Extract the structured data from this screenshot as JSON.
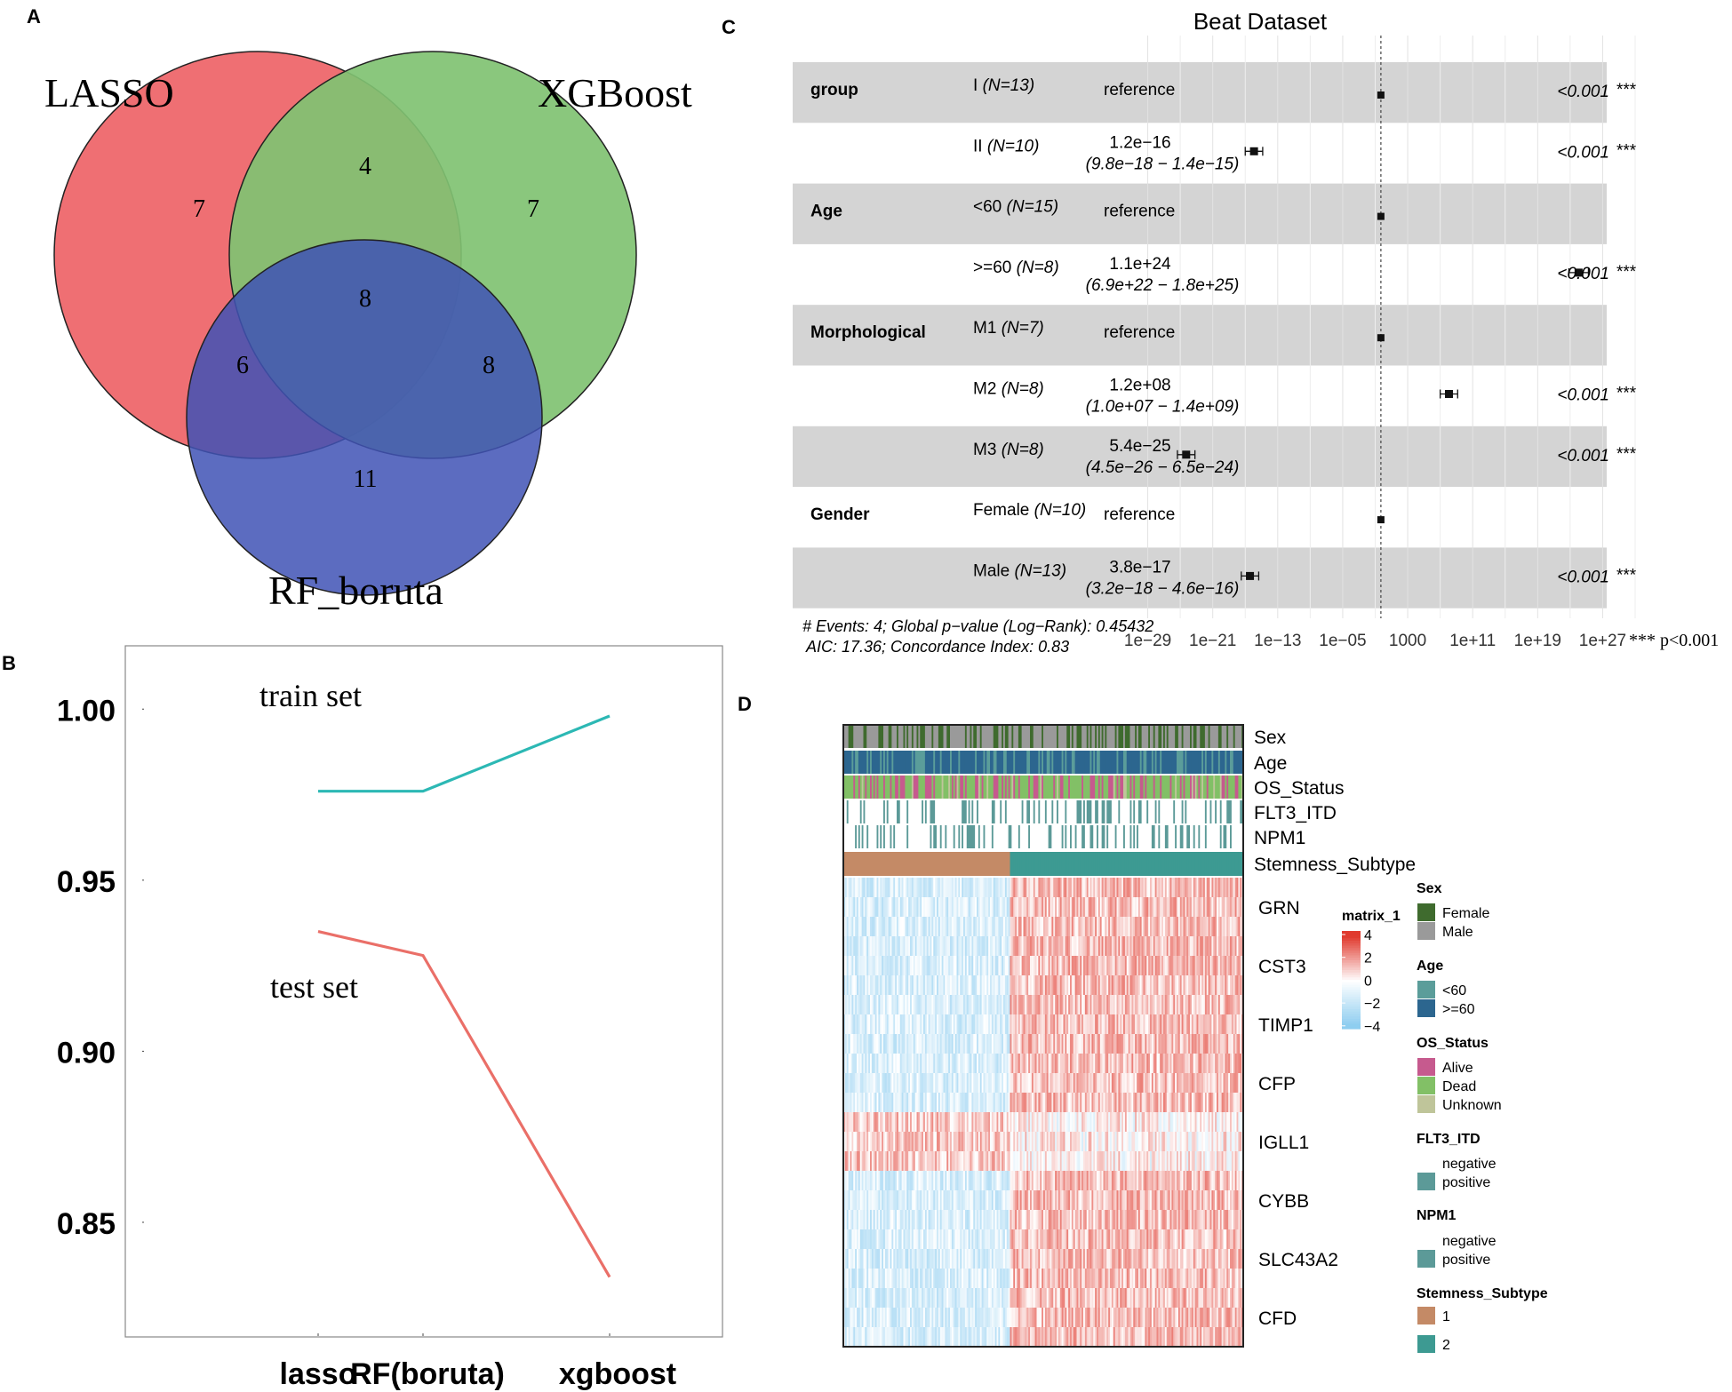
{
  "panels": {
    "A": {
      "letter": "A"
    },
    "B": {
      "letter": "B"
    },
    "C": {
      "letter": "C"
    },
    "D": {
      "letter": "D"
    }
  },
  "chart_data": [
    {
      "panel": "A",
      "type": "venn",
      "sets": [
        "LASSO",
        "XGBoost",
        "RF_boruta"
      ],
      "regions": [
        {
          "key": "lasso_only",
          "label": "LASSO only",
          "value": "7"
        },
        {
          "key": "lasso_xgb",
          "label": "LASSO ∩ XGBoost",
          "value": "4"
        },
        {
          "key": "xgb_only",
          "label": "XGBoost only",
          "value": "7"
        },
        {
          "key": "all",
          "label": "all three",
          "value": "8"
        },
        {
          "key": "lasso_rf",
          "label": "LASSO ∩ RF_boruta",
          "value": "6"
        },
        {
          "key": "xgb_rf",
          "label": "XGBoost ∩ RF_boruta",
          "value": "8"
        },
        {
          "key": "rf_only",
          "label": "RF_boruta only",
          "value": "11"
        }
      ],
      "colors": {
        "LASSO": "#ef6f73",
        "XGBoost": "#80c272",
        "RF_boruta": "#5566ad"
      }
    },
    {
      "panel": "B",
      "type": "line",
      "categories": [
        "lasso",
        "RF(boruta)",
        "xgboost"
      ],
      "series": [
        {
          "name": "train set",
          "values": [
            0.976,
            0.976,
            0.998
          ],
          "color": "#2cb8b4"
        },
        {
          "name": "test set",
          "values": [
            0.935,
            0.928,
            0.834
          ],
          "color": "#ea6f68"
        }
      ],
      "yticks": [
        "0.85",
        "0.90",
        "0.95",
        "1.00"
      ],
      "ylim": [
        0.8165,
        1.0185
      ]
    },
    {
      "panel": "C",
      "type": "forest",
      "title": "Beat Dataset",
      "rows": [
        {
          "variable": "group",
          "level": "I",
          "n": "(N=13)",
          "hr": "reference",
          "ci": "",
          "p": "<0.001",
          "stars": "***",
          "est_log10": -0.3,
          "shaded": true
        },
        {
          "variable": "",
          "level": "II",
          "n": "(N=10)",
          "hr": "1.2e−16",
          "ci": "(9.8e−18 − 1.4e−15)",
          "p": "<0.001",
          "stars": "***",
          "est_log10": -15.92,
          "lo_log10": -17.0,
          "hi_log10": -14.85,
          "shaded": false
        },
        {
          "variable": "Age",
          "level": "<60",
          "n": "(N=15)",
          "hr": "reference",
          "ci": "",
          "p": "",
          "stars": "",
          "est_log10": -0.3,
          "shaded": true
        },
        {
          "variable": "",
          "level": ">=60",
          "n": "(N=8)",
          "hr": "1.1e+24",
          "ci": "(6.9e+22 − 1.8e+25)",
          "p": "<0.001",
          "stars": "***",
          "est_log10": 24.04,
          "lo_log10": 22.84,
          "hi_log10": 25.25,
          "shaded": false
        },
        {
          "variable": "Morphological",
          "level": "M1",
          "n": "(N=7)",
          "hr": "reference",
          "ci": "",
          "p": "",
          "stars": "",
          "est_log10": -0.3,
          "shaded": true
        },
        {
          "variable": "",
          "level": "M2",
          "n": "(N=8)",
          "hr": "1.2e+08",
          "ci": "(1.0e+07 − 1.4e+09)",
          "p": "<0.001",
          "stars": "***",
          "est_log10": 8.08,
          "lo_log10": 7.0,
          "hi_log10": 9.15,
          "shaded": false
        },
        {
          "variable": "",
          "level": "M3",
          "n": "(N=8)",
          "hr": "5.4e−25",
          "ci": "(4.5e−26 − 6.5e−24)",
          "p": "<0.001",
          "stars": "***",
          "est_log10": -24.27,
          "lo_log10": -25.35,
          "hi_log10": -23.19,
          "shaded": true
        },
        {
          "variable": "Gender",
          "level": "Female",
          "n": "(N=10)",
          "hr": "reference",
          "ci": "",
          "p": "",
          "stars": "",
          "est_log10": -0.3,
          "shaded": false
        },
        {
          "variable": "",
          "level": "Male",
          "n": "(N=13)",
          "hr": "3.8e−17",
          "ci": "(3.2e−18 − 4.6e−16)",
          "p": "<0.001",
          "stars": "***",
          "est_log10": -16.42,
          "lo_log10": -17.49,
          "hi_log10": -15.34,
          "shaded": true
        }
      ],
      "xaxis": {
        "scale": "log10",
        "ticks": [
          "1e−29",
          "1e−21",
          "1e−13",
          "1e−05",
          "1000",
          "1e+11",
          "1e+19",
          "1e+27"
        ],
        "tick_log10": [
          -29,
          -21,
          -13,
          -5,
          3,
          11,
          19,
          27
        ],
        "range": [
          -33,
          31
        ]
      },
      "footer": [
        "# Events: 4; Global p−value (Log−Rank): 0.45432",
        "AIC: 17.36; Concordance Index: 0.83"
      ],
      "legend": "*** p<0.001"
    },
    {
      "panel": "D",
      "type": "heatmap",
      "annotation_tracks": [
        "Sex",
        "Age",
        "OS_Status",
        "FLT3_ITD",
        "NPM1",
        "Stemness_Subtype"
      ],
      "genes": [
        "GRN",
        "CST3",
        "TIMP1",
        "CFP",
        "IGLL1",
        "CYBB",
        "SLC43A2",
        "CFD"
      ],
      "subtype_split": 0.415,
      "n_samples": 240,
      "color_scale": {
        "title": "matrix_1",
        "ticks": [
          "4",
          "2",
          "0",
          "−2",
          "−4"
        ],
        "high": "#e03a2e",
        "mid": "#ffffff",
        "low": "#8ecdf0"
      },
      "legends": [
        {
          "title": "Sex",
          "items": [
            {
              "label": "Female",
              "color": "#3f6b2e"
            },
            {
              "label": "Male",
              "color": "#9a9a9a"
            }
          ]
        },
        {
          "title": "Age",
          "items": [
            {
              "label": "<60",
              "color": "#5b9d9a"
            },
            {
              "label": ">=60",
              "color": "#2c668f"
            }
          ]
        },
        {
          "title": "OS_Status",
          "items": [
            {
              "label": "Alive",
              "color": "#c65a8e"
            },
            {
              "label": "Dead",
              "color": "#82c066"
            },
            {
              "label": "Unknown",
              "color": "#bfc59a"
            }
          ]
        },
        {
          "title": "FLT3_ITD",
          "items": [
            {
              "label": "negative",
              "color": "#ffffff"
            },
            {
              "label": "positive",
              "color": "#5c9a98"
            }
          ]
        },
        {
          "title": "NPM1",
          "items": [
            {
              "label": "negative",
              "color": "#ffffff"
            },
            {
              "label": "positive",
              "color": "#5c9a98"
            }
          ]
        },
        {
          "title": "Stemness_Subtype",
          "items": [
            {
              "label": "1",
              "color": "#c48a66"
            },
            {
              "label": "2",
              "color": "#3d9a92"
            }
          ]
        }
      ]
    }
  ]
}
